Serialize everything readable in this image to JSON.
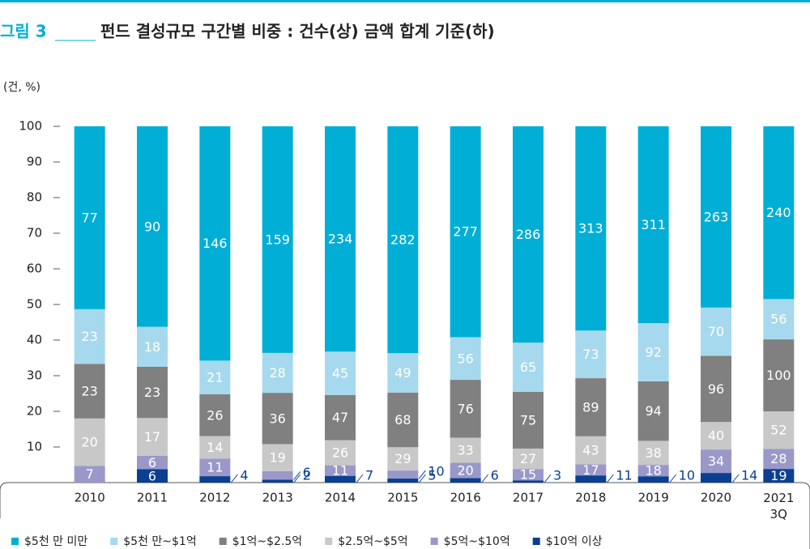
{
  "chart_data": {
    "type": "bar",
    "stacking": "percent",
    "figure_label": "그림 3",
    "title": "펀드 결성규모 구간별 비중 : 건수(상) 금액 합계 기준(하)",
    "unit_label": "(건, %)",
    "categories": [
      "2010",
      "2011",
      "2012",
      "2013",
      "2014",
      "2015",
      "2016",
      "2017",
      "2018",
      "2019",
      "2020",
      "2021 3Q"
    ],
    "ylim": [
      0,
      100
    ],
    "yticks": [
      10,
      20,
      30,
      40,
      50,
      60,
      70,
      80,
      90,
      100
    ],
    "legend": "bottom",
    "series": [
      {
        "name": "$5천 만 미만",
        "color": "#00aed6",
        "values": [
          77,
          90,
          146,
          159,
          234,
          282,
          277,
          286,
          313,
          311,
          263,
          240
        ]
      },
      {
        "name": "$5천 만~$1억",
        "color": "#a6d9ee",
        "values": [
          23,
          18,
          21,
          28,
          45,
          49,
          56,
          65,
          73,
          92,
          70,
          56
        ]
      },
      {
        "name": "$1억~$2.5억",
        "color": "#808080",
        "values": [
          23,
          23,
          26,
          36,
          47,
          68,
          76,
          75,
          89,
          94,
          96,
          100
        ]
      },
      {
        "name": "$2.5억~$5억",
        "color": "#c8c8c8",
        "values": [
          20,
          17,
          14,
          19,
          26,
          29,
          33,
          27,
          43,
          38,
          40,
          52
        ]
      },
      {
        "name": "$5억~$10억",
        "color": "#9a98c9",
        "values": [
          7,
          6,
          11,
          6,
          11,
          10,
          20,
          15,
          17,
          18,
          34,
          28
        ]
      },
      {
        "name": "$10억 이상",
        "color": "#0b3f91",
        "values": [
          null,
          6,
          4,
          2,
          7,
          5,
          6,
          3,
          11,
          10,
          14,
          19
        ]
      }
    ]
  }
}
